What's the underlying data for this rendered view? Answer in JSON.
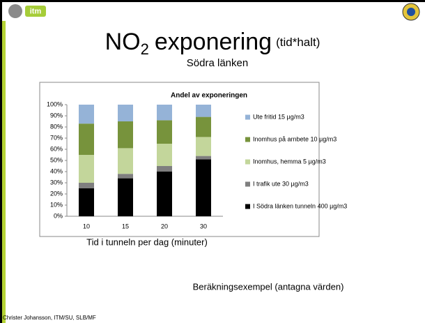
{
  "slide": {
    "title": {
      "main": "NO",
      "sub": "2",
      "rest": "exponering",
      "note": "(tid*halt)"
    },
    "subtitle": "Södra länken",
    "footer_note": "Beräkningsexempel (antagna värden)",
    "author": "Christer Johansson, ITM/SU, SLB/MF",
    "logo": "itm"
  },
  "chart_data": {
    "type": "stacked_bar",
    "title": "Andel av exponeringen",
    "x_label": "Tid i tunneln per dag (minuter)",
    "categories": [
      "10",
      "15",
      "20",
      "30"
    ],
    "series": [
      {
        "name": "I Södra länken tunneln 400 µg/m3",
        "color": "#000000",
        "values": [
          25,
          34,
          40,
          51
        ]
      },
      {
        "name": "I trafik ute 30 µg/m3",
        "color": "#7f7f7f",
        "values": [
          5,
          4,
          5,
          3
        ]
      },
      {
        "name": "Inomhus, hemma 5 µg/m3",
        "color": "#c3d69b",
        "values": [
          25,
          23,
          20,
          17
        ]
      },
      {
        "name": "Inomhus på arnbete 10 µg/m3",
        "color": "#77933c",
        "values": [
          28,
          24,
          21,
          18
        ]
      },
      {
        "name": "Ute fritid 15 µg/m3",
        "color": "#95b3d7",
        "values": [
          17,
          15,
          14,
          11
        ]
      }
    ],
    "ylim": [
      0,
      100
    ],
    "yticks": [
      {
        "value": 0,
        "label": "0%"
      },
      {
        "value": 10,
        "label": "10%"
      },
      {
        "value": 20,
        "label": "20%"
      },
      {
        "value": 30,
        "label": "30%"
      },
      {
        "value": 40,
        "label": "40%"
      },
      {
        "value": 50,
        "label": "50%"
      },
      {
        "value": 60,
        "label": "60%"
      },
      {
        "value": 70,
        "label": "70%"
      },
      {
        "value": 80,
        "label": "80%"
      },
      {
        "value": 90,
        "label": "90%"
      },
      {
        "value": 100,
        "label": "100%"
      }
    ],
    "grid": false,
    "legend": "right"
  }
}
